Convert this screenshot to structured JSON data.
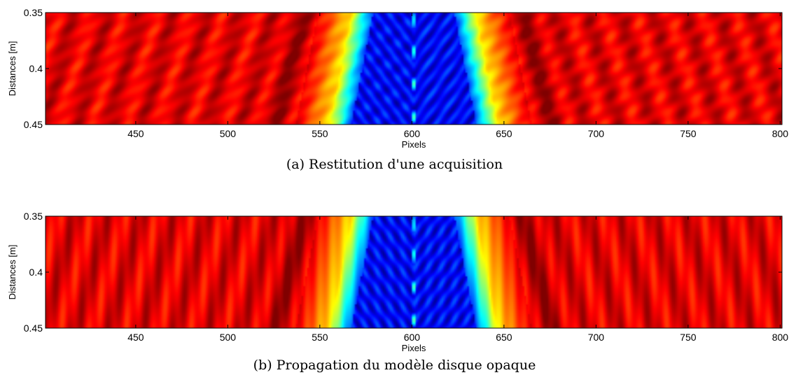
{
  "chart_data": [
    {
      "type": "heatmap",
      "title": "",
      "xlabel": "Pixels",
      "ylabel": "Distances [m]",
      "xlim": [
        401,
        801
      ],
      "ylim": [
        0.35,
        0.45
      ],
      "y_reversed": true,
      "x_ticks": [
        450,
        500,
        550,
        600,
        650,
        700,
        750,
        800
      ],
      "x_tick_labels": [
        "450",
        "500",
        "550",
        "600",
        "650",
        "700",
        "750",
        "800"
      ],
      "y_ticks": [
        0.35,
        0.4,
        0.45
      ],
      "y_tick_labels": [
        "0.35",
        "0.4",
        "0.45"
      ],
      "colormap": "jet",
      "pattern": "acquisition",
      "caption": "(a) Restitution d'une acquisition"
    },
    {
      "type": "heatmap",
      "title": "",
      "xlabel": "Pixels",
      "ylabel": "Distances [m]",
      "xlim": [
        401,
        801
      ],
      "ylim": [
        0.35,
        0.45
      ],
      "y_reversed": true,
      "x_ticks": [
        450,
        500,
        550,
        600,
        650,
        700,
        750,
        800
      ],
      "x_tick_labels": [
        "450",
        "500",
        "550",
        "600",
        "650",
        "700",
        "750",
        "800"
      ],
      "y_ticks": [
        0.35,
        0.4,
        0.45
      ],
      "y_tick_labels": [
        "0.35",
        "0.4",
        "0.45"
      ],
      "colormap": "jet",
      "pattern": "model",
      "caption": "(b) Propagation du modèle disque opaque"
    }
  ]
}
